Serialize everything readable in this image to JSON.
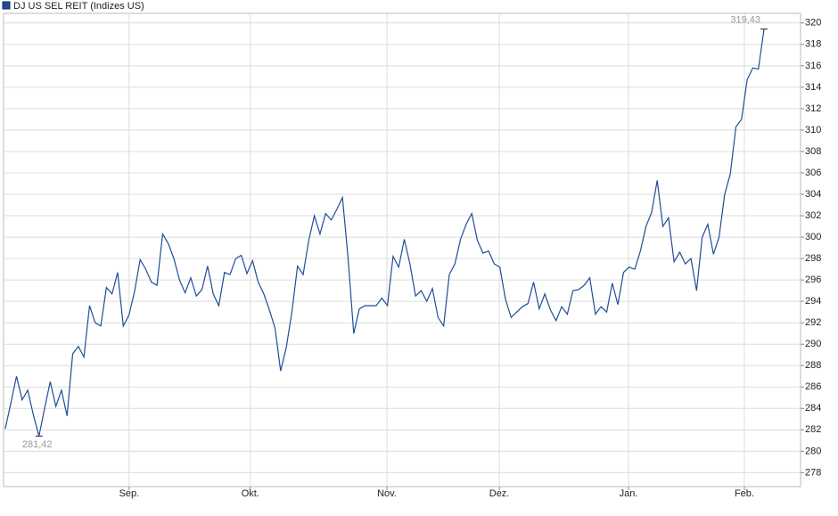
{
  "chart_data": {
    "type": "line",
    "series": [
      {
        "name": "DJ US SEL REIT (Indizes US)",
        "color": "#1f4e96",
        "values": [
          282.1,
          284.5,
          287.0,
          284.8,
          285.7,
          283.4,
          281.42,
          284.0,
          286.5,
          284.2,
          285.7,
          283.3,
          289.1,
          289.8,
          288.8,
          293.6,
          292.0,
          291.7,
          295.3,
          294.7,
          296.7,
          291.7,
          292.7,
          294.9,
          297.9,
          297.0,
          295.8,
          295.5,
          300.3,
          299.4,
          298.0,
          296.0,
          294.8,
          296.2,
          294.5,
          295.1,
          297.3,
          294.7,
          293.6,
          296.7,
          296.5,
          298.0,
          298.3,
          296.6,
          297.8,
          295.8,
          294.7,
          293.2,
          291.5,
          287.5,
          289.7,
          293.0,
          297.3,
          296.5,
          299.7,
          302.0,
          300.3,
          302.2,
          301.6,
          302.6,
          303.7,
          298.0,
          291.0,
          293.3,
          293.6,
          293.6,
          293.6,
          294.3,
          293.6,
          298.2,
          297.2,
          299.8,
          297.5,
          294.5,
          295.0,
          294.0,
          295.2,
          292.5,
          291.7,
          296.5,
          297.5,
          299.8,
          301.2,
          302.2,
          299.7,
          298.5,
          298.7,
          297.5,
          297.2,
          294.2,
          292.5,
          293.0,
          293.5,
          293.8,
          295.8,
          293.3,
          294.7,
          293.2,
          292.2,
          293.5,
          292.8,
          295.0,
          295.1,
          295.5,
          296.2,
          292.8,
          293.5,
          293.0,
          295.7,
          293.7,
          296.7,
          297.2,
          297.0,
          298.7,
          301.0,
          302.3,
          305.3,
          301.0,
          301.8,
          297.7,
          298.6,
          297.5,
          298.0,
          295.0,
          300.0,
          301.2,
          298.4,
          300.0,
          304.0,
          305.9,
          310.3,
          311.0,
          314.7,
          315.8,
          315.7,
          319.43
        ]
      }
    ],
    "min_label": {
      "value": 281.42,
      "label": "281,42"
    },
    "max_label": {
      "value": 319.43,
      "label": "319,43"
    },
    "xlim": [
      -0.3,
      141.5
    ],
    "xticks": [
      {
        "value": 22.05,
        "label": "Sep."
      },
      {
        "value": 43.6,
        "label": "Okt."
      },
      {
        "value": 67.9,
        "label": "Nov."
      },
      {
        "value": 87.9,
        "label": "Dez."
      },
      {
        "value": 110.9,
        "label": "Jan."
      },
      {
        "value": 131.5,
        "label": "Feb."
      }
    ],
    "ylim": [
      276.7,
      320.9
    ],
    "yticks": [
      278,
      280,
      282,
      284,
      286,
      288,
      290,
      292,
      294,
      296,
      298,
      300,
      302,
      304,
      306,
      308,
      310,
      312,
      314,
      316,
      318,
      320
    ],
    "grid": true
  }
}
